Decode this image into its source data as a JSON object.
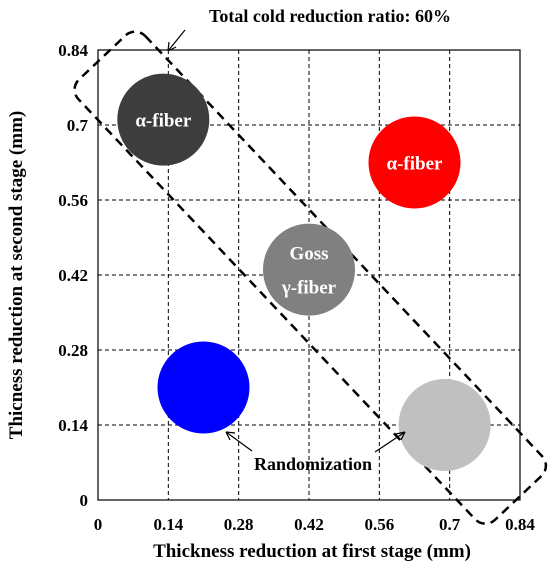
{
  "chart_data": {
    "type": "scatter",
    "title": "",
    "xlabel": "Thickness reduction at first stage (mm)",
    "ylabel": "Thicness reduction at second stage (mm)",
    "xlim": [
      0,
      0.84
    ],
    "ylim": [
      0,
      0.84
    ],
    "xticks": [
      "0",
      "0.14",
      "0.28",
      "0.42",
      "0.56",
      "0.7",
      "0.84"
    ],
    "yticks": [
      "0",
      "0.14",
      "0.28",
      "0.42",
      "0.56",
      "0.7",
      "0.84"
    ],
    "grid": true,
    "points": [
      {
        "x": 0.13,
        "y": 0.71,
        "color": "#3d3d3d",
        "label_lines": [
          "α-fiber"
        ]
      },
      {
        "x": 0.63,
        "y": 0.63,
        "color": "#ff0000",
        "label_lines": [
          "α-fiber"
        ]
      },
      {
        "x": 0.42,
        "y": 0.43,
        "color": "#808080",
        "label_lines": [
          "Goss",
          "γ-fiber"
        ]
      },
      {
        "x": 0.21,
        "y": 0.21,
        "color": "#0000ff",
        "label_lines": []
      },
      {
        "x": 0.69,
        "y": 0.14,
        "color": "#c0c0c0",
        "label_lines": []
      }
    ],
    "annotations": {
      "top": "Total cold reduction ratio: 60%",
      "bottom": "Randomization"
    }
  }
}
